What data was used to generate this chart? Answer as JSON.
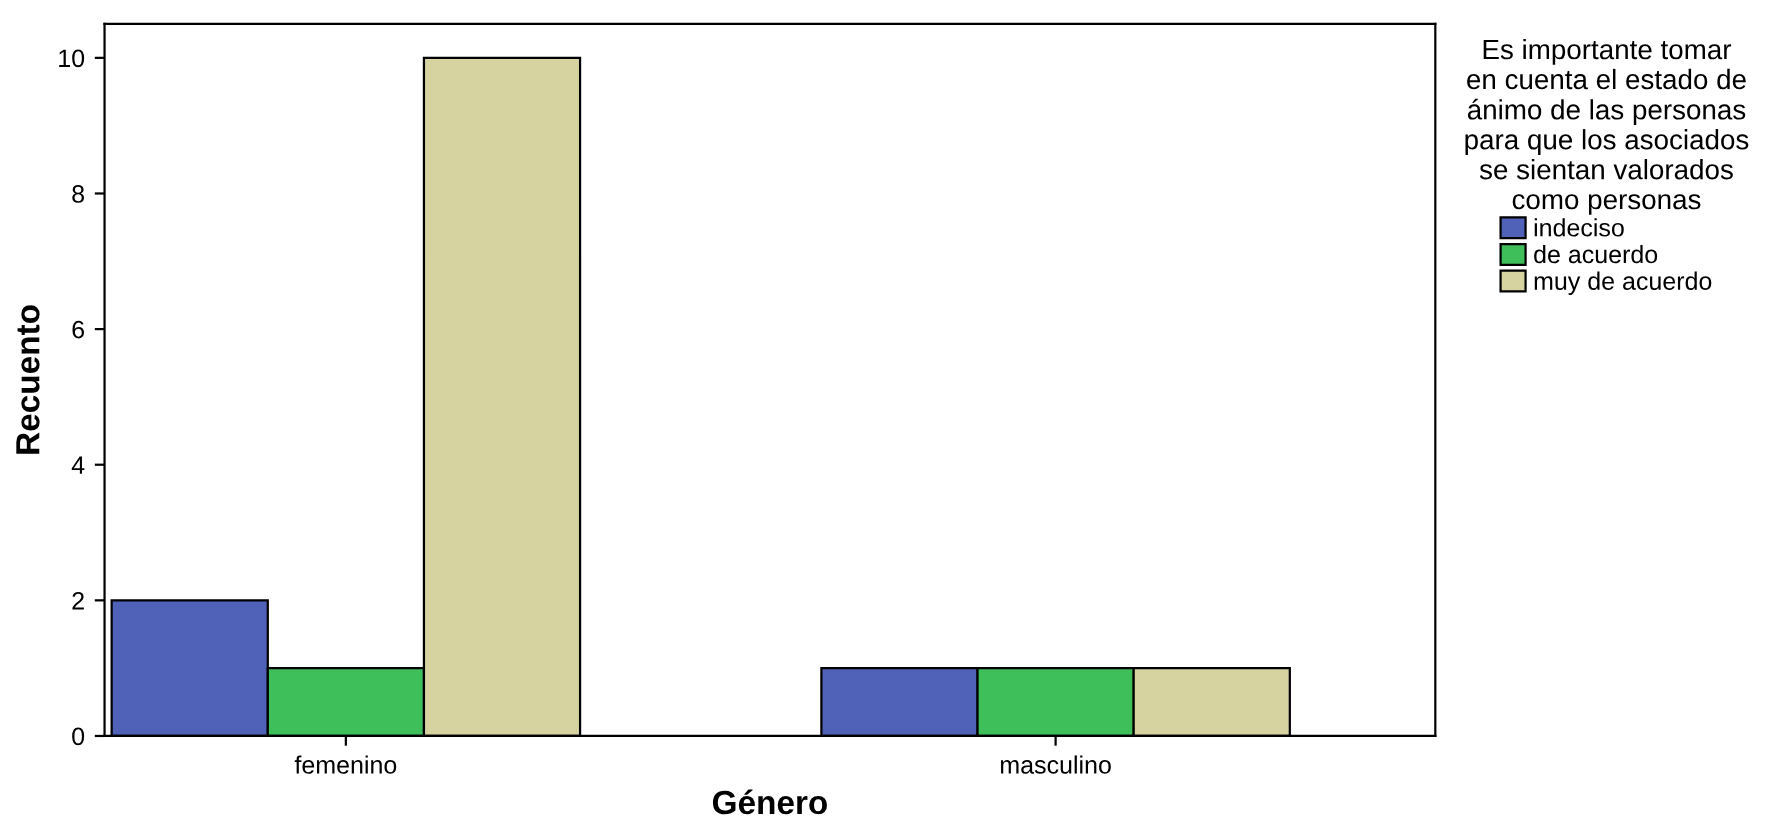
{
  "chart_data": {
    "type": "bar",
    "xlabel": "Género",
    "ylabel": "Recuento",
    "legend_title": "Es importante tomar\nen cuenta el estado de\nánimo de las personas\npara que los asociados\nse sientan valorados\ncomo personas",
    "categories": [
      "femenino",
      "masculino"
    ],
    "series": [
      {
        "name": "indeciso",
        "color": "#4f62b8",
        "values": [
          2,
          1
        ]
      },
      {
        "name": "de acuerdo",
        "color": "#3fbf5a",
        "values": [
          1,
          1
        ]
      },
      {
        "name": "muy de acuerdo",
        "color": "#d6d3a0",
        "values": [
          10,
          1
        ]
      }
    ],
    "ylim": [
      0,
      10.5
    ],
    "yticks": [
      0,
      2,
      4,
      6,
      8,
      10
    ],
    "grid": false,
    "legend": "right"
  }
}
